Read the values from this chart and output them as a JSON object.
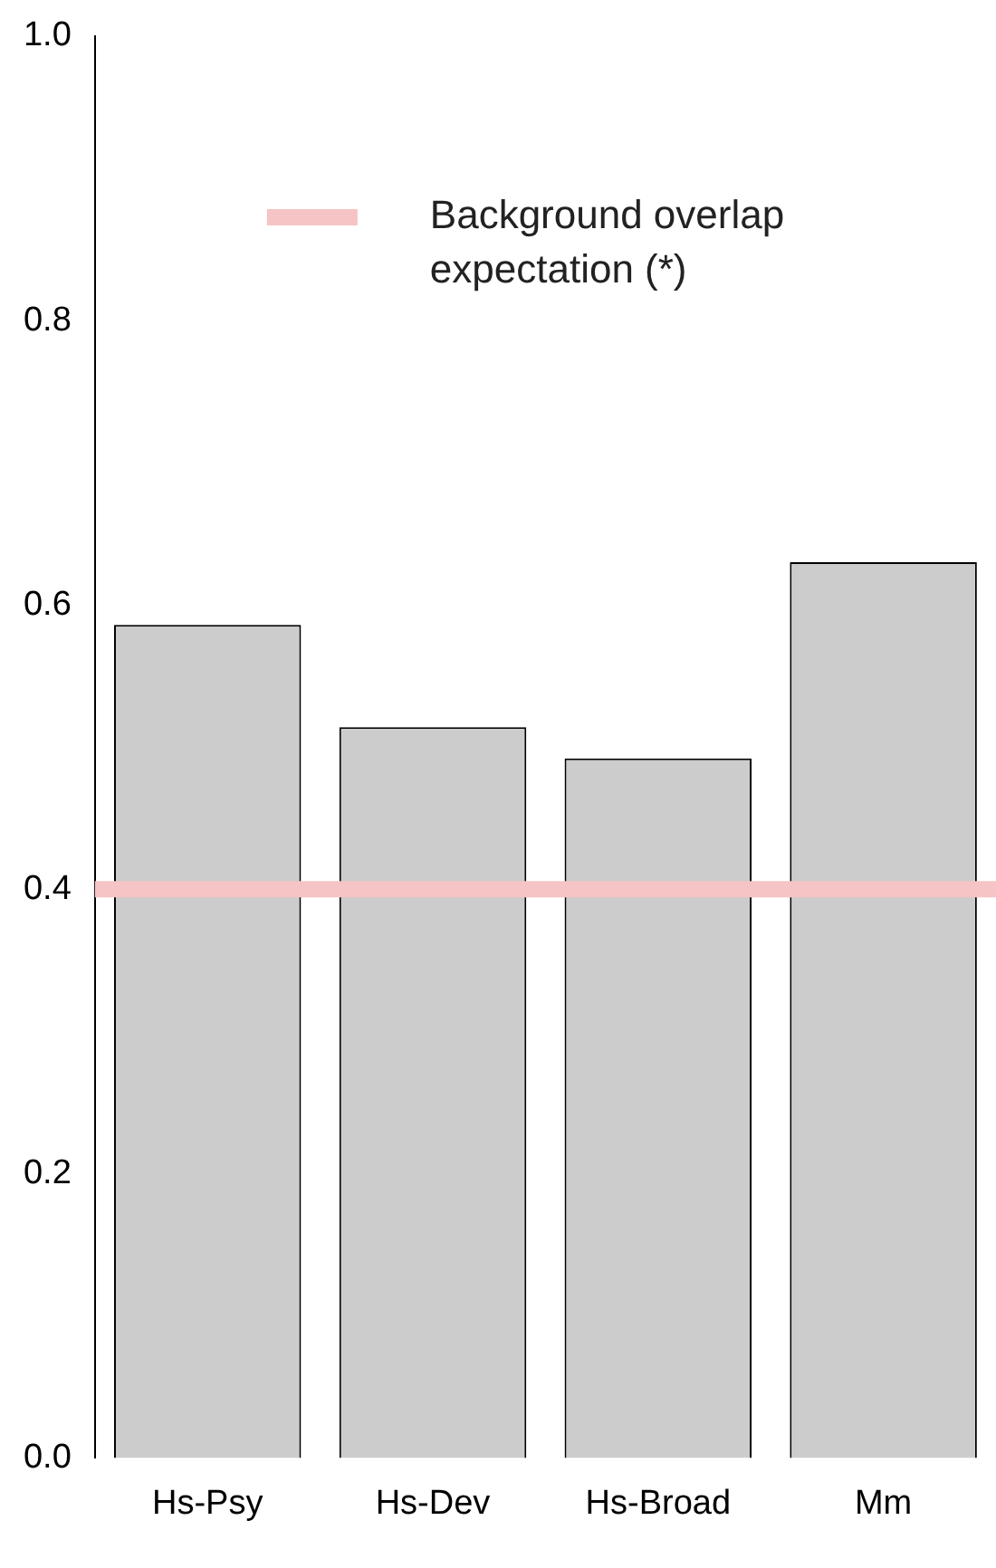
{
  "chart_data": {
    "type": "bar",
    "categories": [
      "Hs-Psy",
      "Hs-Dev",
      "Hs-Broad",
      "Mm"
    ],
    "values": [
      0.586,
      0.514,
      0.492,
      0.63
    ],
    "color": "#cccccc",
    "ylim": [
      0,
      1
    ],
    "yticks": [
      {
        "value": 0,
        "label": "0.0"
      },
      {
        "value": 0.2,
        "label": "0.2"
      },
      {
        "value": 0.4,
        "label": "0.4"
      },
      {
        "value": 0.6,
        "label": "0.6"
      },
      {
        "value": 0.8,
        "label": "0.8"
      },
      {
        "value": 1,
        "label": "1.0"
      }
    ],
    "grid": false,
    "ref_lines": [
      {
        "axis": "y",
        "value": 0.4,
        "label": "Background overlap expectation (*)",
        "color": "#f6c4c4"
      }
    ]
  }
}
